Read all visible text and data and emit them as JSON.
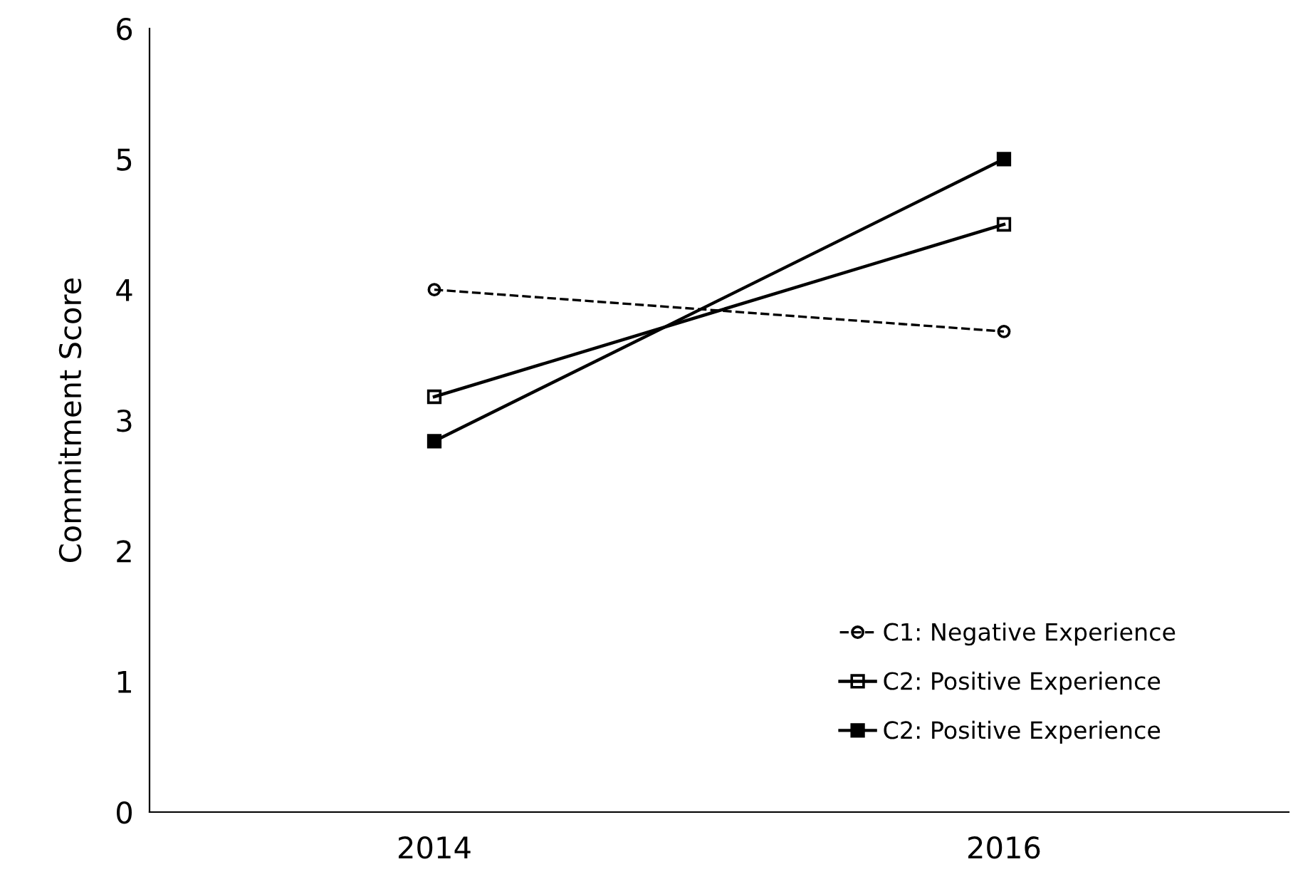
{
  "chart_data": {
    "type": "line",
    "ylabel": "Commitment Score",
    "x": [
      2014,
      2016
    ],
    "series": [
      {
        "name": "C1: Negative Experience",
        "color": "#000000",
        "values": [
          4.0,
          3.68
        ],
        "line_style": "dashed",
        "marker": "circle"
      },
      {
        "name": "C2: Positive Experience",
        "color": "#000000",
        "values": [
          3.18,
          4.5
        ],
        "line_style": "solid",
        "marker": "square"
      },
      {
        "name": "C2: Positive Experience",
        "color": "#000000",
        "values": [
          2.84,
          5.0
        ],
        "line_style": "solid",
        "marker": "square"
      }
    ],
    "xlim": [
      2013,
      2017
    ],
    "xticks": [
      2014,
      2016
    ],
    "ylim": [
      0,
      6
    ],
    "yticks": [
      0,
      1,
      2,
      3,
      4,
      5,
      6
    ],
    "grid": false,
    "legend": "bottom right"
  }
}
